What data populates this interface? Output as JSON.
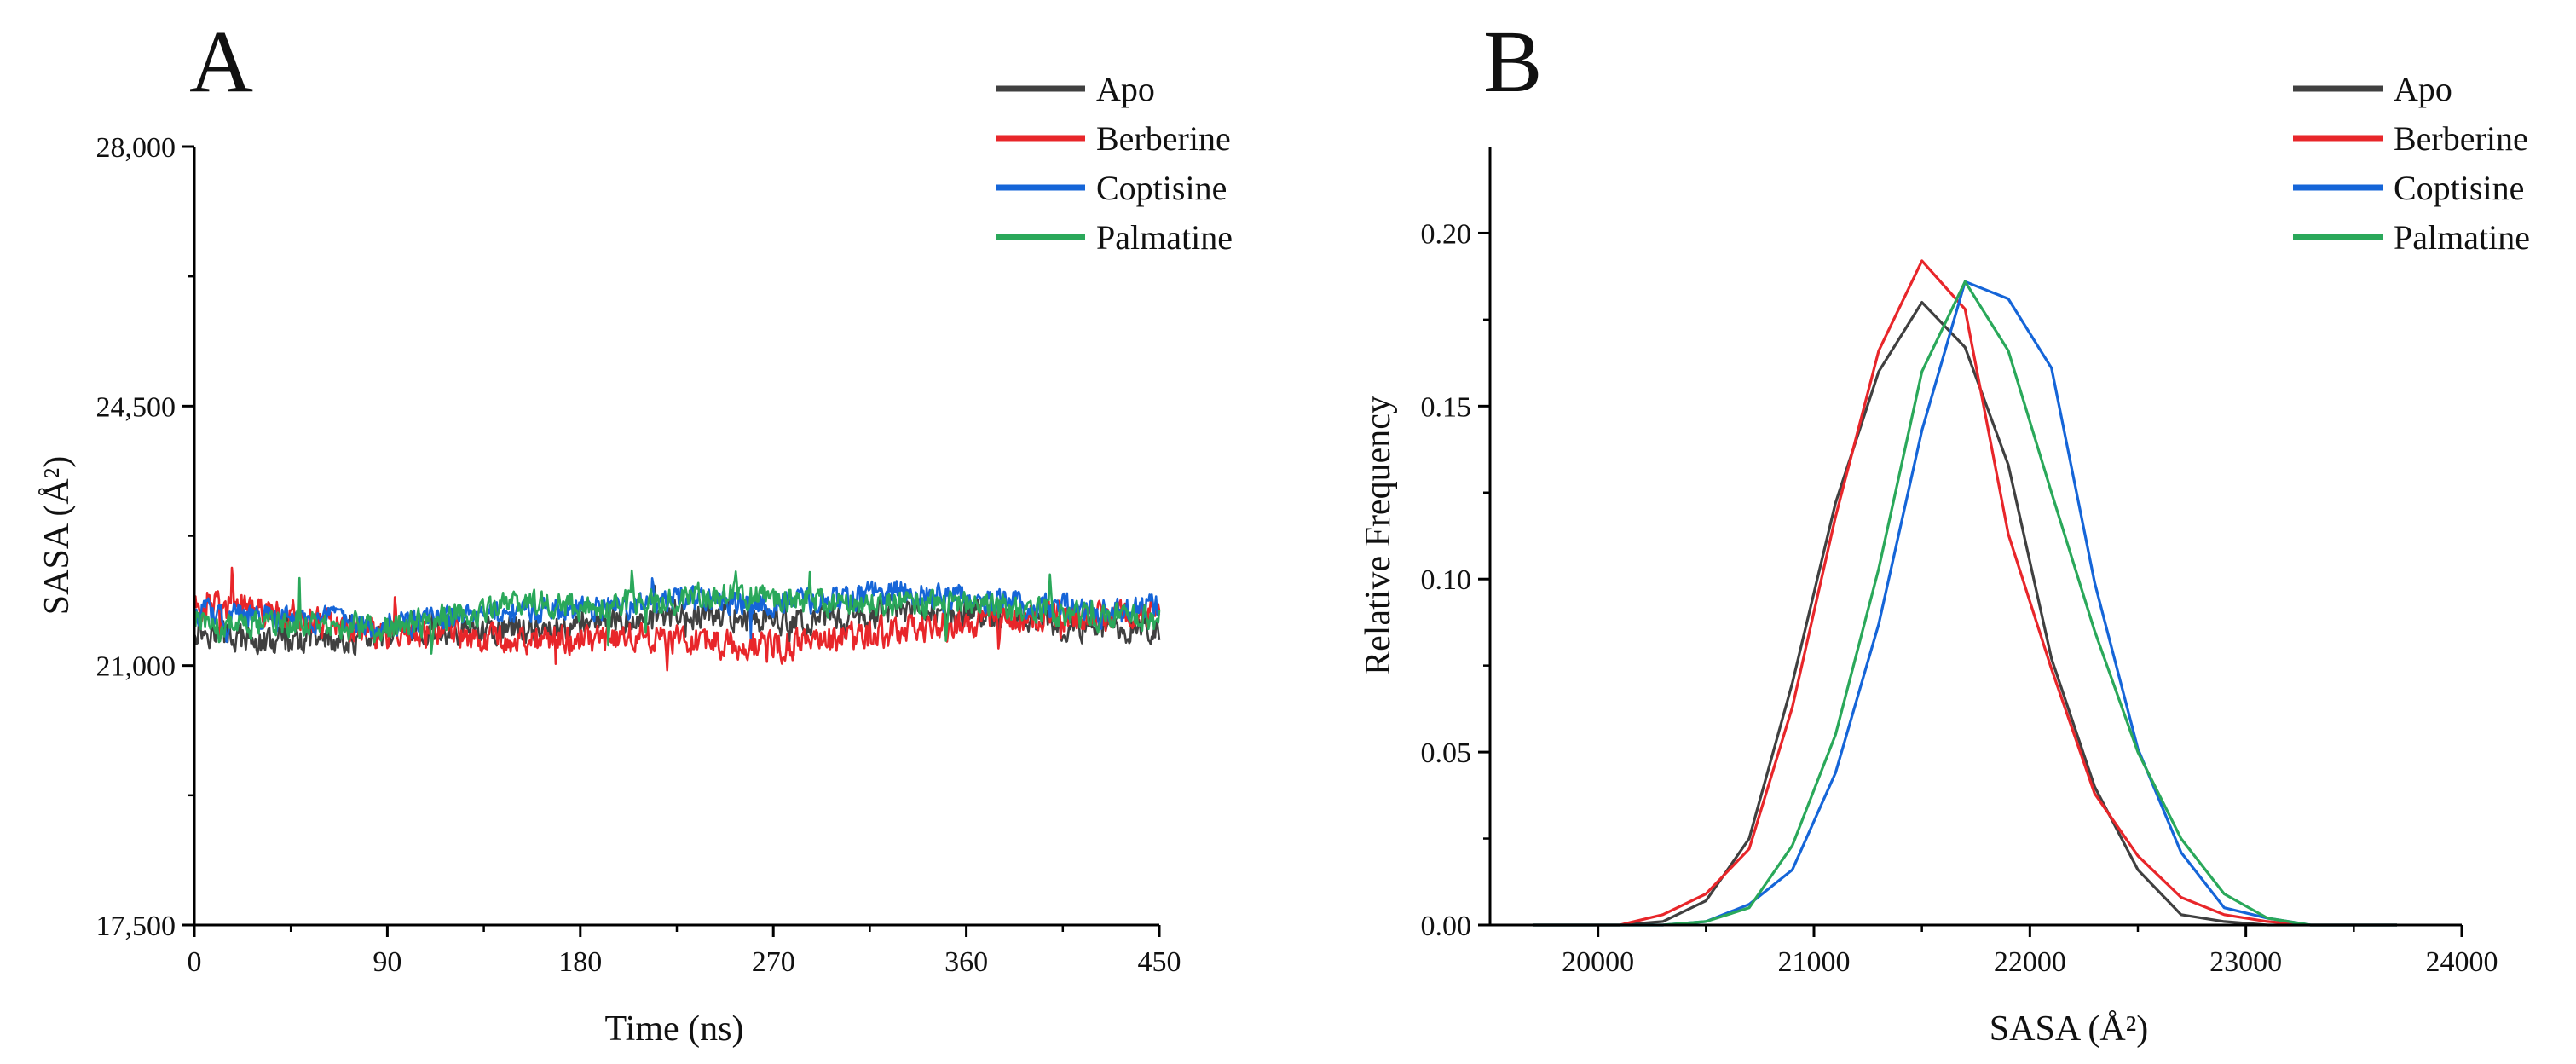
{
  "chart_data": [
    {
      "panel": "A",
      "type": "line",
      "title": "",
      "xlabel": "Time (ns)",
      "ylabel": "SASA (Å²)",
      "xlim": [
        0,
        450
      ],
      "ylim": [
        17500,
        28000
      ],
      "xticks": [
        0,
        90,
        180,
        270,
        360,
        450
      ],
      "xtick_labels": [
        "0",
        "90",
        "180",
        "270",
        "360",
        "450"
      ],
      "yticks": [
        17500,
        21000,
        24500,
        28000
      ],
      "ytick_labels": [
        "17,500",
        "21,000",
        "24,500",
        "28,000"
      ],
      "legend_position": "top-right",
      "noise_points": 900,
      "series": [
        {
          "name": "Apo",
          "color": "#404040",
          "x": [
            0,
            30,
            60,
            90,
            120,
            150,
            180,
            210,
            240,
            270,
            300,
            330,
            360,
            390,
            420,
            450
          ],
          "mean": [
            21500,
            21300,
            21350,
            21350,
            21450,
            21500,
            21550,
            21600,
            21700,
            21600,
            21650,
            21750,
            21700,
            21600,
            21500,
            21500
          ],
          "amplitude": 260
        },
        {
          "name": "Berberine",
          "color": "#e8262a",
          "x": [
            0,
            30,
            60,
            90,
            120,
            150,
            180,
            210,
            240,
            270,
            300,
            330,
            360,
            390,
            420,
            450
          ],
          "mean": [
            21800,
            21750,
            21600,
            21400,
            21450,
            21350,
            21350,
            21400,
            21300,
            21250,
            21350,
            21450,
            21600,
            21650,
            21650,
            21700
          ],
          "amplitude": 280
        },
        {
          "name": "Coptisine",
          "color": "#1565d8",
          "x": [
            0,
            30,
            60,
            90,
            120,
            150,
            180,
            210,
            240,
            270,
            300,
            330,
            360,
            390,
            420,
            450
          ],
          "mean": [
            21700,
            21650,
            21600,
            21550,
            21650,
            21700,
            21750,
            21850,
            21900,
            21850,
            21900,
            22000,
            21900,
            21850,
            21700,
            21800
          ],
          "amplitude": 240
        },
        {
          "name": "Palmatine",
          "color": "#2aa85a",
          "x": [
            0,
            30,
            60,
            90,
            120,
            150,
            180,
            210,
            240,
            270,
            300,
            330,
            360,
            390,
            420,
            450
          ],
          "mean": [
            21600,
            21550,
            21550,
            21500,
            21650,
            21850,
            21800,
            21850,
            21950,
            21900,
            21850,
            21850,
            21800,
            21750,
            21650,
            21650
          ],
          "amplitude": 250
        }
      ]
    },
    {
      "panel": "B",
      "type": "line",
      "title": "",
      "xlabel": "SASA (Å²)",
      "ylabel": "Relative Frequency",
      "xlim": [
        19500,
        24000
      ],
      "ylim": [
        0,
        0.225
      ],
      "xticks": [
        20000,
        21000,
        22000,
        23000,
        24000
      ],
      "xtick_labels": [
        "20000",
        "21000",
        "22000",
        "23000",
        "24000"
      ],
      "yticks": [
        0,
        0.05,
        0.1,
        0.15,
        0.2
      ],
      "ytick_labels": [
        "0.00",
        "0.05",
        "0.10",
        "0.15",
        "0.20"
      ],
      "legend_position": "top-right",
      "series": [
        {
          "name": "Apo",
          "color": "#404040",
          "x": [
            19700,
            19900,
            20100,
            20300,
            20500,
            20700,
            20900,
            21100,
            21300,
            21500,
            21700,
            21900,
            22100,
            22300,
            22500,
            22700,
            22900,
            23100,
            23300,
            23500,
            23700
          ],
          "values": [
            0,
            0,
            0,
            0.001,
            0.007,
            0.025,
            0.07,
            0.122,
            0.16,
            0.18,
            0.167,
            0.133,
            0.077,
            0.04,
            0.016,
            0.003,
            0.001,
            0,
            0,
            0,
            0
          ]
        },
        {
          "name": "Berberine",
          "color": "#e8262a",
          "x": [
            19700,
            19900,
            20100,
            20300,
            20500,
            20700,
            20900,
            21100,
            21300,
            21500,
            21700,
            21900,
            22100,
            22300,
            22500,
            22700,
            22900,
            23100,
            23300,
            23500,
            23700
          ],
          "values": [
            0,
            0,
            0,
            0.003,
            0.009,
            0.022,
            0.063,
            0.118,
            0.166,
            0.192,
            0.178,
            0.113,
            0.074,
            0.038,
            0.02,
            0.008,
            0.003,
            0.001,
            0,
            0,
            0
          ]
        },
        {
          "name": "Coptisine",
          "color": "#1565d8",
          "x": [
            19700,
            19900,
            20100,
            20300,
            20500,
            20700,
            20900,
            21100,
            21300,
            21500,
            21700,
            21900,
            22100,
            22300,
            22500,
            22700,
            22900,
            23100,
            23300,
            23500,
            23700
          ],
          "values": [
            0,
            0,
            0,
            0,
            0.001,
            0.006,
            0.016,
            0.044,
            0.087,
            0.143,
            0.186,
            0.181,
            0.161,
            0.099,
            0.051,
            0.021,
            0.005,
            0.002,
            0,
            0,
            0
          ]
        },
        {
          "name": "Palmatine",
          "color": "#2aa85a",
          "x": [
            19700,
            19900,
            20100,
            20300,
            20500,
            20700,
            20900,
            21100,
            21300,
            21500,
            21700,
            21900,
            22100,
            22300,
            22500,
            22700,
            22900,
            23100,
            23300,
            23500,
            23700
          ],
          "values": [
            0,
            0,
            0,
            0,
            0.001,
            0.005,
            0.023,
            0.055,
            0.103,
            0.16,
            0.186,
            0.166,
            0.125,
            0.085,
            0.05,
            0.025,
            0.009,
            0.002,
            0,
            0,
            0
          ]
        }
      ]
    }
  ]
}
